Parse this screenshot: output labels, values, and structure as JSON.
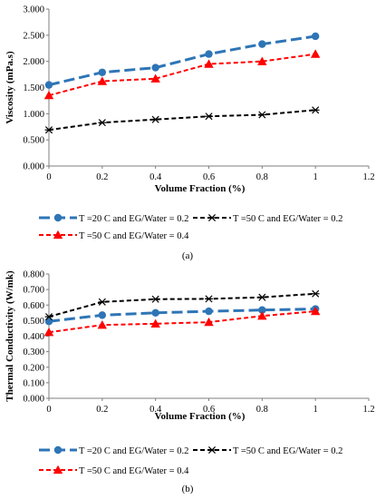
{
  "chart_data": [
    {
      "type": "line",
      "panel_label": "(a)",
      "xlabel": "Volume Fraction (%)",
      "ylabel": "Viscosity (mPa.s)",
      "xlim": [
        0,
        1.2
      ],
      "ylim": [
        0,
        3.0
      ],
      "xticks": [
        "0",
        "0.2",
        "0.4",
        "0.6",
        "0.8",
        "1",
        "1.2"
      ],
      "yticks": [
        "0.000",
        "0.500",
        "1.000",
        "1.500",
        "2.000",
        "2.500",
        "3.000"
      ],
      "grid": false,
      "legend_position": "bottom",
      "x": [
        0,
        0.2,
        0.4,
        0.6,
        0.8,
        1.0
      ],
      "series": [
        {
          "name": "T =20 C and EG/Water = 0.2",
          "values": [
            1.55,
            1.79,
            1.88,
            2.14,
            2.33,
            2.48
          ],
          "color": "#2e75b6",
          "marker": "circle",
          "dash": "long"
        },
        {
          "name": "T =50 C and EG/Water = 0.2",
          "values": [
            0.69,
            0.83,
            0.89,
            0.95,
            0.98,
            1.07
          ],
          "color": "#000000",
          "marker": "asterisk",
          "dash": "short"
        },
        {
          "name": "T =50 C and EG/Water = 0.4",
          "values": [
            1.35,
            1.62,
            1.67,
            1.95,
            2.0,
            2.14
          ],
          "color": "#ff0000",
          "marker": "triangle",
          "dash": "short"
        }
      ]
    },
    {
      "type": "line",
      "panel_label": "(b)",
      "xlabel": "Volume Fraction (%)",
      "ylabel": "Thermal Conductivity (W/mk)",
      "xlim": [
        0,
        1.2
      ],
      "ylim": [
        0,
        0.8
      ],
      "xticks": [
        "0",
        "0.2",
        "0.4",
        "0.6",
        "0.8",
        "1",
        "1.2"
      ],
      "yticks": [
        "0.000",
        "0.100",
        "0.200",
        "0.300",
        "0.400",
        "0.500",
        "0.600",
        "0.700",
        "0.800"
      ],
      "grid": false,
      "legend_position": "bottom",
      "x": [
        0,
        0.2,
        0.4,
        0.6,
        0.8,
        1.0
      ],
      "series": [
        {
          "name": "T =20 C and EG/Water = 0.2",
          "values": [
            0.495,
            0.535,
            0.55,
            0.56,
            0.568,
            0.575
          ],
          "color": "#2e75b6",
          "marker": "circle",
          "dash": "long"
        },
        {
          "name": "T =50 C and EG/Water = 0.2",
          "values": [
            0.525,
            0.62,
            0.638,
            0.64,
            0.65,
            0.673
          ],
          "color": "#000000",
          "marker": "asterisk",
          "dash": "short"
        },
        {
          "name": "T =50 C and EG/Water = 0.4",
          "values": [
            0.425,
            0.472,
            0.48,
            0.49,
            0.53,
            0.56
          ],
          "color": "#ff0000",
          "marker": "triangle",
          "dash": "short"
        }
      ]
    }
  ]
}
